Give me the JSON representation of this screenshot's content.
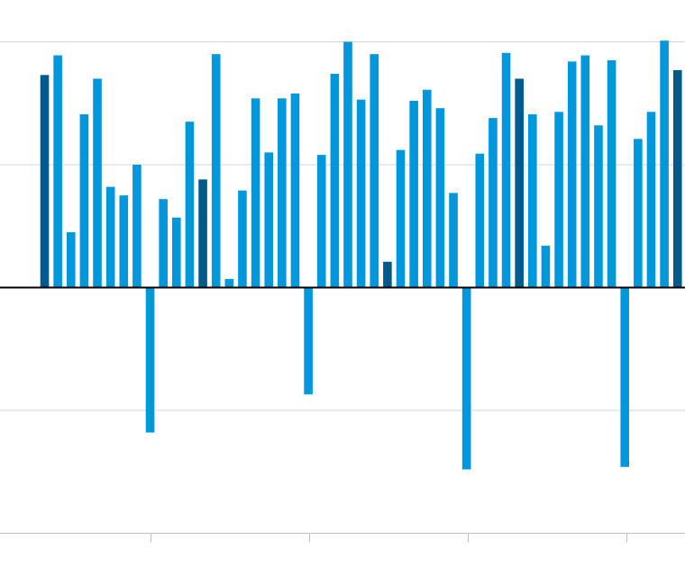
{
  "chart_data": {
    "type": "bar",
    "title": "",
    "xlabel": "",
    "ylabel": "",
    "ylim": [
      -2,
      2
    ],
    "yticks": [
      -2,
      -1,
      0,
      1,
      2
    ],
    "grid": true,
    "legend": "none",
    "colors": {
      "normal": "#0097dc",
      "highlight": "#005a8c",
      "zero_line": "#000000",
      "grid": "#d6d6d6",
      "axis": "#bdbdbd"
    },
    "series": [
      {
        "values": [
          1.73,
          1.89,
          0.45,
          1.41,
          1.7,
          0.82,
          0.75,
          1.0,
          -1.18,
          0.72,
          0.57,
          1.35,
          0.88,
          1.9,
          0.07,
          0.79,
          1.54,
          1.1,
          1.54,
          1.58,
          -0.87,
          1.08,
          1.74,
          2.0,
          1.53,
          1.9,
          0.21,
          1.12,
          1.52,
          1.61,
          1.46,
          0.77,
          -1.48,
          1.09,
          1.38,
          1.91,
          1.7,
          1.41,
          0.34,
          1.43,
          1.84,
          1.89,
          1.32,
          1.85,
          -1.46,
          1.21,
          1.43,
          2.01,
          1.77
        ],
        "highlight": [
          0,
          12,
          26,
          36,
          48
        ]
      }
    ]
  }
}
